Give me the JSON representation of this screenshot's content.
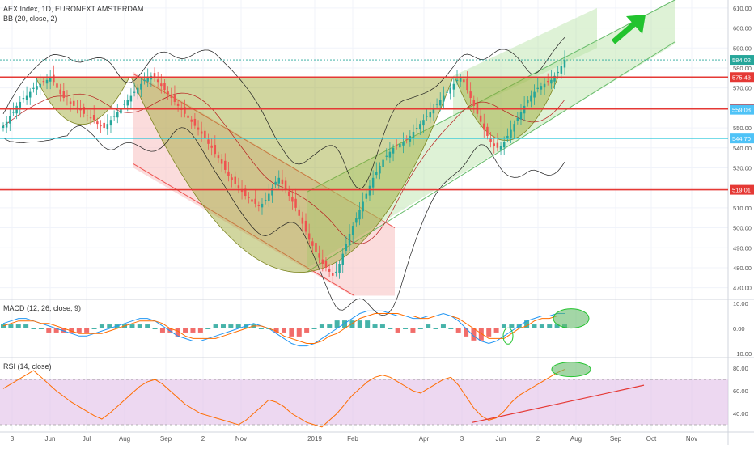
{
  "header": {
    "symbol_title": "AEX Index, 1D, EURONEXT AMSTERDAM",
    "indicator_bb": "BB (20, close, 2)"
  },
  "colors": {
    "up": "#26a69a",
    "down": "#ef5350",
    "resistance_line": "#e53935",
    "support_line": "#26c6da",
    "pattern_fill": "#9aa32a",
    "channel_fill": "#b5e3a3",
    "channel_line": "#66bb6a",
    "down_channel_fill": "#f8c5c5",
    "macd_line": "#2196f3",
    "signal_line": "#ff6d00",
    "rsi_line": "#ff6d00",
    "rsi_band": "#e1bee7",
    "arrow": "#22c32e",
    "last_price_badge": "#26a69a",
    "level_badge": "#e53935",
    "support_badge": "#4fc3f7"
  },
  "icons": {
    "trend_arrow": "arrow-up-right-icon"
  },
  "chart_data": [
    {
      "type": "candlestick",
      "name": "price",
      "x_ticks": [
        "3",
        "Jun",
        "Jul",
        "Aug",
        "Sep",
        "2",
        "Nov",
        "2019",
        "Feb",
        "Apr",
        "3",
        "Jun",
        "2",
        "Aug",
        "Sep",
        "Oct",
        "Nov"
      ],
      "y_ticks": [
        470,
        480,
        490,
        500,
        510,
        520,
        530,
        540,
        550,
        560,
        570,
        580,
        590,
        600,
        610
      ],
      "ylim": [
        465,
        614
      ],
      "price_labels": [
        {
          "value": "584.02",
          "kind": "last"
        },
        {
          "value": "575.43",
          "kind": "level"
        },
        {
          "value": "559.44",
          "kind": "level"
        },
        {
          "value": "559.08",
          "kind": "support"
        },
        {
          "value": "544.70",
          "kind": "support"
        },
        {
          "value": "519.01",
          "kind": "level"
        }
      ],
      "horizontal_levels": [
        575.43,
        559.44,
        544.7,
        519.01
      ],
      "closes": [
        551,
        553,
        556,
        558,
        561,
        563,
        565,
        566,
        568,
        570,
        571,
        572,
        573,
        574,
        575,
        573,
        570,
        567,
        565,
        564,
        562,
        561,
        560,
        559,
        557,
        556,
        555,
        554,
        552,
        551,
        550,
        552,
        554,
        556,
        558,
        560,
        562,
        564,
        566,
        568,
        570,
        572,
        574,
        575,
        576,
        575,
        573,
        571,
        569,
        567,
        565,
        563,
        561,
        559,
        557,
        555,
        553,
        551,
        549,
        547,
        545,
        542,
        540,
        537,
        535,
        532,
        529,
        526,
        524,
        522,
        520,
        518,
        516,
        515,
        513,
        512,
        511,
        512,
        514,
        517,
        520,
        523,
        525,
        522,
        519,
        516,
        513,
        510,
        506,
        502,
        498,
        494,
        491,
        488,
        485,
        482,
        480,
        478,
        476,
        478,
        482,
        487,
        492,
        497,
        501,
        505,
        509,
        513,
        517,
        521,
        525,
        528,
        531,
        534,
        536,
        538,
        540,
        541,
        542,
        543,
        544,
        546,
        548,
        550,
        552,
        554,
        556,
        558,
        560,
        562,
        564,
        566,
        568,
        570,
        572,
        574,
        575,
        573,
        569,
        565,
        561,
        557,
        553,
        549,
        546,
        543,
        541,
        540,
        541,
        543,
        546,
        549,
        552,
        555,
        558,
        561,
        564,
        566,
        568,
        570,
        571,
        572,
        573,
        574,
        576,
        578,
        581,
        584
      ],
      "bollinger": {
        "period": 20,
        "mult": 2
      },
      "patterns": [
        {
          "type": "cup",
          "from": "May",
          "to": "Aug",
          "rim": 575.43,
          "bottom": 553
        },
        {
          "type": "cup",
          "from": "Aug",
          "to": "Apr",
          "rim": 575.43,
          "bottom": 473
        },
        {
          "type": "cup",
          "from": "Apr",
          "to": "Jul",
          "rim": 575.43,
          "bottom": 544
        },
        {
          "type": "ascending_channel",
          "from": "Jan",
          "to": "Oct"
        },
        {
          "type": "descending_channel",
          "from": "Aug",
          "to": "Jan"
        }
      ]
    },
    {
      "type": "histogram+line",
      "name": "macd",
      "title": "MACD (12, 26, close, 9)",
      "y_ticks": [
        "10.00",
        "0.00",
        "−10.00"
      ],
      "ylim": [
        -11,
        11
      ],
      "macd": [
        2,
        3,
        4,
        4,
        3,
        2,
        1,
        0,
        -1,
        -2,
        -3,
        -3,
        -2,
        -1,
        0,
        1,
        2,
        3,
        4,
        4,
        3,
        1,
        -1,
        -3,
        -4,
        -5,
        -5,
        -4,
        -3,
        -2,
        -1,
        0,
        1,
        2,
        1,
        0,
        -2,
        -4,
        -6,
        -7,
        -7,
        -6,
        -4,
        -2,
        0,
        2,
        4,
        6,
        7,
        7,
        7,
        6,
        5,
        5,
        4,
        4,
        5,
        5,
        6,
        5,
        3,
        0,
        -3,
        -5,
        -6,
        -5,
        -3,
        -1,
        1,
        3,
        4,
        5,
        5,
        6,
        6
      ],
      "signal": [
        1,
        2,
        3,
        3,
        3,
        2,
        2,
        1,
        0,
        -1,
        -2,
        -2,
        -2,
        -2,
        -1,
        0,
        1,
        2,
        3,
        3,
        3,
        2,
        0,
        -1,
        -3,
        -4,
        -4,
        -4,
        -4,
        -3,
        -2,
        -1,
        0,
        1,
        1,
        0,
        -1,
        -3,
        -4,
        -5,
        -6,
        -6,
        -5,
        -3,
        -2,
        0,
        2,
        4,
        5,
        6,
        6,
        6,
        6,
        5,
        5,
        4,
        4,
        5,
        5,
        5,
        4,
        2,
        0,
        -2,
        -4,
        -4,
        -4,
        -2,
        0,
        1,
        3,
        4,
        4,
        5,
        5
      ]
    },
    {
      "type": "line",
      "name": "rsi",
      "title": "RSI (14, close)",
      "y_ticks": [
        "80.00",
        "60.00",
        "40.00"
      ],
      "ylim": [
        25,
        88
      ],
      "band": [
        30,
        70
      ],
      "values": [
        62,
        66,
        70,
        74,
        78,
        72,
        66,
        60,
        55,
        50,
        46,
        42,
        38,
        35,
        40,
        46,
        52,
        58,
        64,
        68,
        70,
        66,
        60,
        54,
        48,
        44,
        40,
        38,
        36,
        34,
        32,
        30,
        34,
        40,
        46,
        52,
        50,
        46,
        40,
        36,
        32,
        30,
        28,
        34,
        40,
        48,
        56,
        62,
        68,
        72,
        74,
        72,
        68,
        64,
        60,
        58,
        62,
        66,
        70,
        72,
        65,
        55,
        45,
        38,
        34,
        36,
        42,
        50,
        56,
        60,
        64,
        68,
        72,
        76,
        79
      ]
    }
  ]
}
